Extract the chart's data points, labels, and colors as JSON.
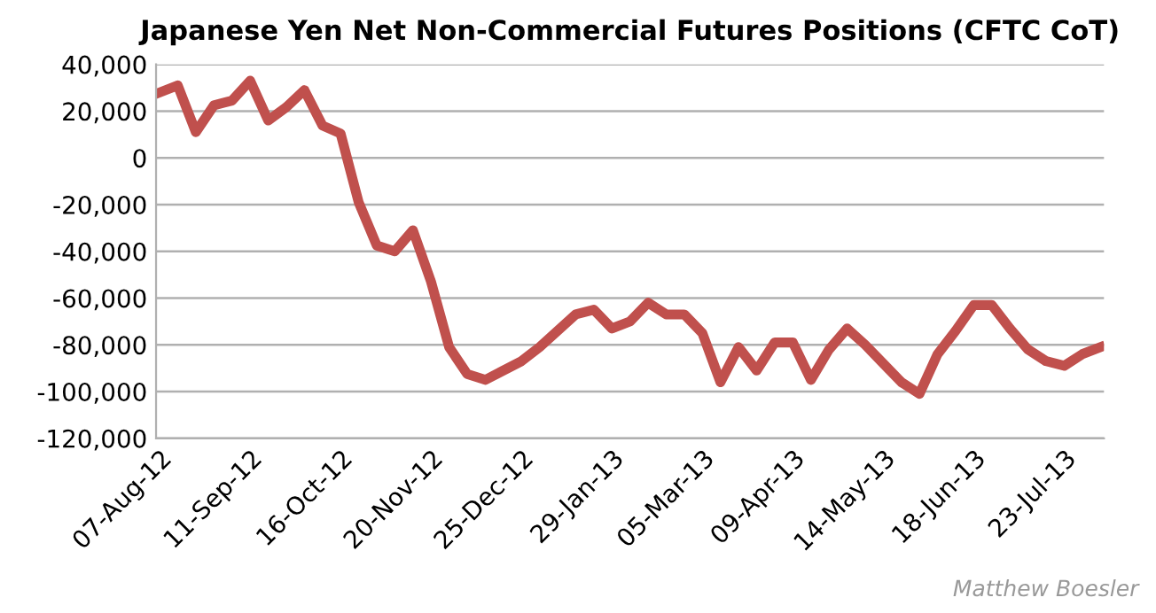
{
  "chart_data": {
    "type": "line",
    "title": "Japanese Yen Net Non-Commercial Futures Positions (CFTC CoT)",
    "categories": [
      "07-Aug-12",
      null,
      null,
      null,
      null,
      "11-Sep-12",
      null,
      null,
      null,
      null,
      "16-Oct-12",
      null,
      null,
      null,
      null,
      "20-Nov-12",
      null,
      null,
      null,
      null,
      "25-Dec-12",
      null,
      null,
      null,
      null,
      "29-Jan-13",
      null,
      null,
      null,
      null,
      "05-Mar-13",
      null,
      null,
      null,
      null,
      "09-Apr-13",
      null,
      null,
      null,
      null,
      "14-May-13",
      null,
      null,
      null,
      null,
      "18-Jun-13",
      null,
      null,
      null,
      null,
      "23-Jul-13",
      null,
      null
    ],
    "series": [
      {
        "color": "#c0504d",
        "values": [
          28000,
          31000,
          11000,
          22500,
          24500,
          33000,
          16000,
          21700,
          29000,
          13800,
          10400,
          -19000,
          -37500,
          -40000,
          -31000,
          -53000,
          -81000,
          -92500,
          -95000,
          -91000,
          -87000,
          -81000,
          -74000,
          -67000,
          -65000,
          -73000,
          -70000,
          -62000,
          -67000,
          -67000,
          -75000,
          -96000,
          -81000,
          -91000,
          -79000,
          -79000,
          -95000,
          -82000,
          -73000,
          -80000,
          -88000,
          -96000,
          -101000,
          -84000,
          -74000,
          -63000,
          -63000,
          -73000,
          -82000,
          -87000,
          -89000,
          -84000,
          -81000
        ]
      }
    ],
    "ylim": [
      -120000,
      40000
    ],
    "yticks": [
      {
        "value": -120000,
        "label": "-120,000"
      },
      {
        "value": -100000,
        "label": "-100,000"
      },
      {
        "value": -80000,
        "label": "-80,000"
      },
      {
        "value": -60000,
        "label": "-60,000"
      },
      {
        "value": -40000,
        "label": "-40,000"
      },
      {
        "value": -20000,
        "label": "-20,000"
      },
      0,
      {
        "value": 20000,
        "label": "20,000"
      },
      {
        "value": 40000,
        "label": "40,000"
      }
    ],
    "grid": "y",
    "marker": "none",
    "line_style": "solid",
    "annotations": [
      "Matthew Boesler"
    ]
  }
}
